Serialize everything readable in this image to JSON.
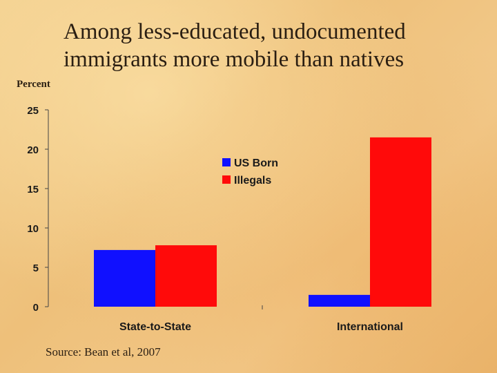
{
  "slide": {
    "title_lines": [
      "Among less-educated, undocumented",
      "immigrants more mobile than natives"
    ],
    "source": "Source: Bean et al, 2007"
  },
  "chart_data": {
    "type": "bar",
    "title": "",
    "ylabel": "Percent",
    "xlabel": "",
    "categories": [
      "State-to-State",
      "International"
    ],
    "series": [
      {
        "name": "US Born",
        "values": [
          7.2,
          1.5
        ],
        "color": "#1010ff"
      },
      {
        "name": "Illegals",
        "values": [
          7.8,
          21.5
        ],
        "color": "#ff0a0a"
      }
    ],
    "ylim": [
      0,
      25
    ],
    "yticks": [
      0,
      5,
      10,
      15,
      20,
      25
    ],
    "grid": false,
    "legend_position": "center"
  }
}
